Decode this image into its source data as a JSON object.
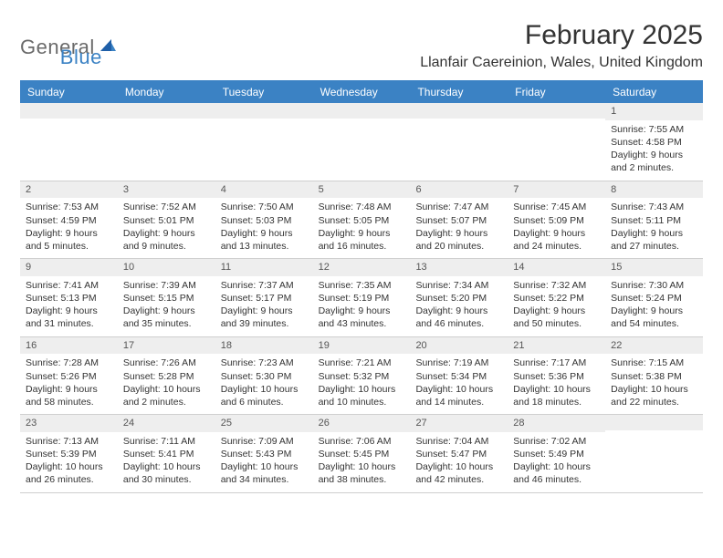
{
  "logo": {
    "text1": "General",
    "text2": "Blue"
  },
  "title": "February 2025",
  "location": "Llanfair Caereinion, Wales, United Kingdom",
  "colors": {
    "accent": "#3b82c4",
    "band": "#eeeeee",
    "text": "#333333",
    "background": "#ffffff",
    "rule": "#cfcfcf"
  },
  "dayNames": [
    "Sunday",
    "Monday",
    "Tuesday",
    "Wednesday",
    "Thursday",
    "Friday",
    "Saturday"
  ],
  "weeks": [
    [
      {
        "n": "",
        "sr": "",
        "ss": "",
        "dl": ""
      },
      {
        "n": "",
        "sr": "",
        "ss": "",
        "dl": ""
      },
      {
        "n": "",
        "sr": "",
        "ss": "",
        "dl": ""
      },
      {
        "n": "",
        "sr": "",
        "ss": "",
        "dl": ""
      },
      {
        "n": "",
        "sr": "",
        "ss": "",
        "dl": ""
      },
      {
        "n": "",
        "sr": "",
        "ss": "",
        "dl": ""
      },
      {
        "n": "1",
        "sr": "Sunrise: 7:55 AM",
        "ss": "Sunset: 4:58 PM",
        "dl": "Daylight: 9 hours and 2 minutes."
      }
    ],
    [
      {
        "n": "2",
        "sr": "Sunrise: 7:53 AM",
        "ss": "Sunset: 4:59 PM",
        "dl": "Daylight: 9 hours and 5 minutes."
      },
      {
        "n": "3",
        "sr": "Sunrise: 7:52 AM",
        "ss": "Sunset: 5:01 PM",
        "dl": "Daylight: 9 hours and 9 minutes."
      },
      {
        "n": "4",
        "sr": "Sunrise: 7:50 AM",
        "ss": "Sunset: 5:03 PM",
        "dl": "Daylight: 9 hours and 13 minutes."
      },
      {
        "n": "5",
        "sr": "Sunrise: 7:48 AM",
        "ss": "Sunset: 5:05 PM",
        "dl": "Daylight: 9 hours and 16 minutes."
      },
      {
        "n": "6",
        "sr": "Sunrise: 7:47 AM",
        "ss": "Sunset: 5:07 PM",
        "dl": "Daylight: 9 hours and 20 minutes."
      },
      {
        "n": "7",
        "sr": "Sunrise: 7:45 AM",
        "ss": "Sunset: 5:09 PM",
        "dl": "Daylight: 9 hours and 24 minutes."
      },
      {
        "n": "8",
        "sr": "Sunrise: 7:43 AM",
        "ss": "Sunset: 5:11 PM",
        "dl": "Daylight: 9 hours and 27 minutes."
      }
    ],
    [
      {
        "n": "9",
        "sr": "Sunrise: 7:41 AM",
        "ss": "Sunset: 5:13 PM",
        "dl": "Daylight: 9 hours and 31 minutes."
      },
      {
        "n": "10",
        "sr": "Sunrise: 7:39 AM",
        "ss": "Sunset: 5:15 PM",
        "dl": "Daylight: 9 hours and 35 minutes."
      },
      {
        "n": "11",
        "sr": "Sunrise: 7:37 AM",
        "ss": "Sunset: 5:17 PM",
        "dl": "Daylight: 9 hours and 39 minutes."
      },
      {
        "n": "12",
        "sr": "Sunrise: 7:35 AM",
        "ss": "Sunset: 5:19 PM",
        "dl": "Daylight: 9 hours and 43 minutes."
      },
      {
        "n": "13",
        "sr": "Sunrise: 7:34 AM",
        "ss": "Sunset: 5:20 PM",
        "dl": "Daylight: 9 hours and 46 minutes."
      },
      {
        "n": "14",
        "sr": "Sunrise: 7:32 AM",
        "ss": "Sunset: 5:22 PM",
        "dl": "Daylight: 9 hours and 50 minutes."
      },
      {
        "n": "15",
        "sr": "Sunrise: 7:30 AM",
        "ss": "Sunset: 5:24 PM",
        "dl": "Daylight: 9 hours and 54 minutes."
      }
    ],
    [
      {
        "n": "16",
        "sr": "Sunrise: 7:28 AM",
        "ss": "Sunset: 5:26 PM",
        "dl": "Daylight: 9 hours and 58 minutes."
      },
      {
        "n": "17",
        "sr": "Sunrise: 7:26 AM",
        "ss": "Sunset: 5:28 PM",
        "dl": "Daylight: 10 hours and 2 minutes."
      },
      {
        "n": "18",
        "sr": "Sunrise: 7:23 AM",
        "ss": "Sunset: 5:30 PM",
        "dl": "Daylight: 10 hours and 6 minutes."
      },
      {
        "n": "19",
        "sr": "Sunrise: 7:21 AM",
        "ss": "Sunset: 5:32 PM",
        "dl": "Daylight: 10 hours and 10 minutes."
      },
      {
        "n": "20",
        "sr": "Sunrise: 7:19 AM",
        "ss": "Sunset: 5:34 PM",
        "dl": "Daylight: 10 hours and 14 minutes."
      },
      {
        "n": "21",
        "sr": "Sunrise: 7:17 AM",
        "ss": "Sunset: 5:36 PM",
        "dl": "Daylight: 10 hours and 18 minutes."
      },
      {
        "n": "22",
        "sr": "Sunrise: 7:15 AM",
        "ss": "Sunset: 5:38 PM",
        "dl": "Daylight: 10 hours and 22 minutes."
      }
    ],
    [
      {
        "n": "23",
        "sr": "Sunrise: 7:13 AM",
        "ss": "Sunset: 5:39 PM",
        "dl": "Daylight: 10 hours and 26 minutes."
      },
      {
        "n": "24",
        "sr": "Sunrise: 7:11 AM",
        "ss": "Sunset: 5:41 PM",
        "dl": "Daylight: 10 hours and 30 minutes."
      },
      {
        "n": "25",
        "sr": "Sunrise: 7:09 AM",
        "ss": "Sunset: 5:43 PM",
        "dl": "Daylight: 10 hours and 34 minutes."
      },
      {
        "n": "26",
        "sr": "Sunrise: 7:06 AM",
        "ss": "Sunset: 5:45 PM",
        "dl": "Daylight: 10 hours and 38 minutes."
      },
      {
        "n": "27",
        "sr": "Sunrise: 7:04 AM",
        "ss": "Sunset: 5:47 PM",
        "dl": "Daylight: 10 hours and 42 minutes."
      },
      {
        "n": "28",
        "sr": "Sunrise: 7:02 AM",
        "ss": "Sunset: 5:49 PM",
        "dl": "Daylight: 10 hours and 46 minutes."
      },
      {
        "n": "",
        "sr": "",
        "ss": "",
        "dl": ""
      }
    ]
  ]
}
